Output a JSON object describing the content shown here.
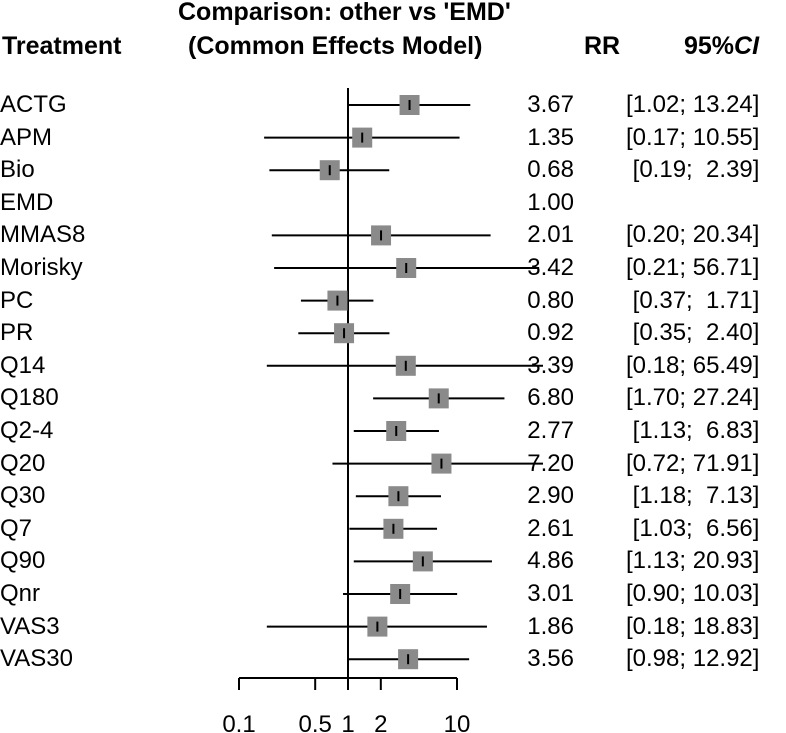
{
  "header": {
    "treatment": "Treatment",
    "comparison_line1": "Comparison: other vs 'EMD'",
    "comparison_line2": "(Common Effects Model)",
    "rr": "RR",
    "ci_prefix": "95%",
    "ci_italic": "CI"
  },
  "chart_data": {
    "type": "forest",
    "title": "Comparison: other vs 'EMD' (Common Effects Model)",
    "xscale": "log",
    "reference_value": 1,
    "xticks": [
      0.1,
      0.5,
      1,
      2,
      10
    ],
    "xtick_labels": [
      "0.1",
      "0.5",
      "1",
      "2",
      "10"
    ],
    "rows": [
      {
        "name": "ACTG",
        "rr": 3.67,
        "lo": 1.02,
        "hi": 13.24,
        "rr_text": "3.67",
        "ci_text": "[1.02; 13.24]"
      },
      {
        "name": "APM",
        "rr": 1.35,
        "lo": 0.17,
        "hi": 10.55,
        "rr_text": "1.35",
        "ci_text": "[0.17; 10.55]"
      },
      {
        "name": "Bio",
        "rr": 0.68,
        "lo": 0.19,
        "hi": 2.39,
        "rr_text": "0.68",
        "ci_text": " [0.19;  2.39]"
      },
      {
        "name": "EMD",
        "rr": 1.0,
        "lo": null,
        "hi": null,
        "rr_text": "1.00",
        "ci_text": ""
      },
      {
        "name": "MMAS8",
        "rr": 2.01,
        "lo": 0.2,
        "hi": 20.34,
        "rr_text": "2.01",
        "ci_text": "[0.20; 20.34]"
      },
      {
        "name": "Morisky",
        "rr": 3.42,
        "lo": 0.21,
        "hi": 56.71,
        "rr_text": "3.42",
        "ci_text": "[0.21; 56.71]"
      },
      {
        "name": "PC",
        "rr": 0.8,
        "lo": 0.37,
        "hi": 1.71,
        "rr_text": "0.80",
        "ci_text": " [0.37;  1.71]"
      },
      {
        "name": "PR",
        "rr": 0.92,
        "lo": 0.35,
        "hi": 2.4,
        "rr_text": "0.92",
        "ci_text": " [0.35;  2.40]"
      },
      {
        "name": "Q14",
        "rr": 3.39,
        "lo": 0.18,
        "hi": 65.49,
        "rr_text": "3.39",
        "ci_text": "[0.18; 65.49]"
      },
      {
        "name": "Q180",
        "rr": 6.8,
        "lo": 1.7,
        "hi": 27.24,
        "rr_text": "6.80",
        "ci_text": "[1.70; 27.24]"
      },
      {
        "name": "Q2-4",
        "rr": 2.77,
        "lo": 1.13,
        "hi": 6.83,
        "rr_text": "2.77",
        "ci_text": " [1.13;  6.83]"
      },
      {
        "name": "Q20",
        "rr": 7.2,
        "lo": 0.72,
        "hi": 71.91,
        "rr_text": "7.20",
        "ci_text": "[0.72; 71.91]"
      },
      {
        "name": "Q30",
        "rr": 2.9,
        "lo": 1.18,
        "hi": 7.13,
        "rr_text": "2.90",
        "ci_text": " [1.18;  7.13]"
      },
      {
        "name": "Q7",
        "rr": 2.61,
        "lo": 1.03,
        "hi": 6.56,
        "rr_text": "2.61",
        "ci_text": " [1.03;  6.56]"
      },
      {
        "name": "Q90",
        "rr": 4.86,
        "lo": 1.13,
        "hi": 20.93,
        "rr_text": "4.86",
        "ci_text": "[1.13; 20.93]"
      },
      {
        "name": "Qnr",
        "rr": 3.01,
        "lo": 0.9,
        "hi": 10.03,
        "rr_text": "3.01",
        "ci_text": "[0.90; 10.03]"
      },
      {
        "name": "VAS3",
        "rr": 1.86,
        "lo": 0.18,
        "hi": 18.83,
        "rr_text": "1.86",
        "ci_text": "[0.18; 18.83]"
      },
      {
        "name": "VAS30",
        "rr": 3.56,
        "lo": 0.98,
        "hi": 12.92,
        "rr_text": "3.56",
        "ci_text": "[0.98; 12.92]"
      }
    ],
    "colors": {
      "box": "#8a8a8a",
      "line": "#000000"
    }
  }
}
